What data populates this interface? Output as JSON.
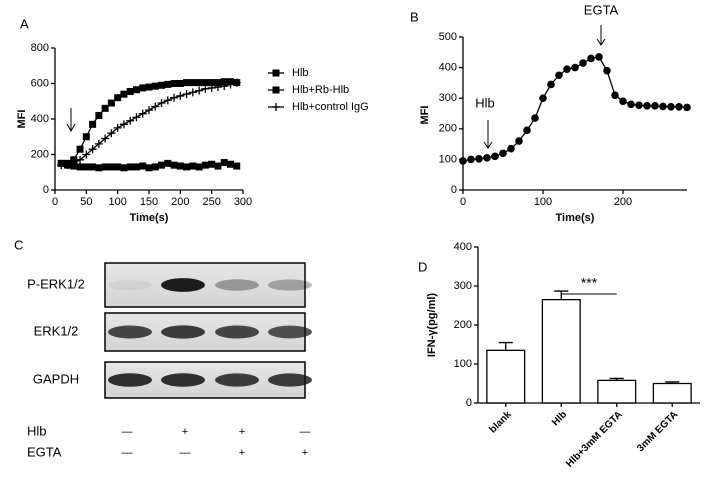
{
  "chart_data": [
    {
      "type": "line",
      "panel": "A",
      "xlabel": "Time(s)",
      "ylabel": "MFI",
      "x": [
        10,
        20,
        30,
        40,
        50,
        60,
        70,
        80,
        90,
        100,
        110,
        120,
        130,
        140,
        150,
        160,
        170,
        180,
        190,
        200,
        210,
        220,
        230,
        240,
        250,
        260,
        270,
        280,
        290
      ],
      "series": [
        {
          "name": "Hlb",
          "color": "#000000",
          "marker": "square",
          "values": [
            150,
            150,
            170,
            230,
            300,
            370,
            420,
            460,
            490,
            520,
            540,
            555,
            565,
            575,
            580,
            585,
            590,
            595,
            600,
            600,
            605,
            605,
            605,
            605,
            605,
            605,
            610,
            610,
            605
          ]
        },
        {
          "name": "Hlb+Rb-Hlb",
          "color": "#000000",
          "marker": "square",
          "values": [
            150,
            140,
            135,
            130,
            130,
            130,
            125,
            130,
            130,
            130,
            125,
            130,
            130,
            135,
            125,
            130,
            140,
            150,
            140,
            135,
            130,
            135,
            130,
            140,
            145,
            135,
            155,
            145,
            135
          ]
        },
        {
          "name": "Hlb+control IgG",
          "color": "#000000",
          "marker": "plus",
          "values": [
            140,
            140,
            150,
            170,
            200,
            230,
            260,
            290,
            320,
            350,
            370,
            390,
            410,
            430,
            450,
            470,
            490,
            505,
            520,
            530,
            540,
            550,
            560,
            570,
            575,
            580,
            585,
            595,
            605
          ]
        }
      ],
      "xlim": [
        0,
        300
      ],
      "xticks": [
        0,
        50,
        100,
        150,
        200,
        250,
        300
      ],
      "ylim": [
        0,
        800
      ],
      "yticks": [
        0,
        200,
        400,
        600,
        800
      ],
      "legend": "right"
    },
    {
      "type": "line",
      "panel": "B",
      "xlabel": "Time(s)",
      "ylabel": "MFI",
      "annotations": [
        "Hlb",
        "EGTA"
      ],
      "x": [
        0,
        10,
        20,
        30,
        40,
        50,
        60,
        70,
        80,
        90,
        100,
        110,
        120,
        130,
        140,
        150,
        160,
        170,
        180,
        190,
        200,
        210,
        220,
        230,
        240,
        250,
        260,
        270,
        280
      ],
      "series": [
        {
          "color": "#000000",
          "marker": "circle",
          "values": [
            95,
            100,
            102,
            105,
            110,
            120,
            135,
            160,
            195,
            235,
            300,
            345,
            375,
            395,
            400,
            415,
            430,
            435,
            390,
            310,
            290,
            280,
            277,
            275,
            275,
            273,
            272,
            272,
            270
          ]
        }
      ],
      "xlim": [
        0,
        280
      ],
      "xticks": [
        0,
        100,
        200
      ],
      "ylim": [
        0,
        500
      ],
      "yticks": [
        0,
        100,
        200,
        300,
        400,
        500
      ]
    },
    {
      "type": "bar",
      "panel": "D",
      "ylabel": "IFN-γ(pg/ml)",
      "annotation": "***",
      "categories": [
        "blank",
        "Hlb",
        "Hlb+3mM EGTA",
        "3mM EGTA"
      ],
      "values": [
        135,
        265,
        58,
        50
      ],
      "errors": [
        20,
        22,
        5,
        4
      ],
      "color": "#ffffff",
      "ylim": [
        0,
        400
      ],
      "yticks": [
        0,
        100,
        200,
        300,
        400
      ]
    }
  ],
  "blot": {
    "panel": "C",
    "rows": [
      "P-ERK1/2",
      "ERK1/2",
      "GAPDH"
    ],
    "conditions": [
      {
        "name": "Hlb",
        "signs": [
          "—",
          "+",
          "+",
          "—"
        ]
      },
      {
        "name": "EGTA",
        "signs": [
          "—",
          "—",
          "+",
          "+"
        ]
      }
    ]
  }
}
